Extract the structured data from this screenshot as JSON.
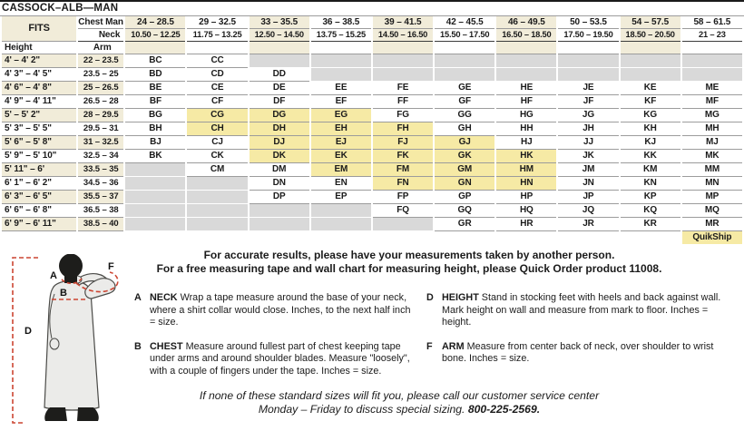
{
  "title": "CASSOCK–ALB—MAN",
  "colors": {
    "cream": "#f1ecd9",
    "quikship_yellow": "#f6eaa5",
    "unavailable_gray": "#d9d9d9",
    "measure_line_red": "#cc4532"
  },
  "table": {
    "fits_label": "FITS",
    "chest_row_label": "Chest Man",
    "neck_row_label": "Neck",
    "height_col_label": "Height",
    "arm_col_label": "Arm",
    "quikship_label": "QuikShip",
    "chest_ranges": [
      "24 – 28.5",
      "29 – 32.5",
      "33 – 35.5",
      "36 – 38.5",
      "39 – 41.5",
      "42 – 45.5",
      "46 – 49.5",
      "50 – 53.5",
      "54 – 57.5",
      "58 – 61.5"
    ],
    "neck_ranges": [
      "10.50 – 12.25",
      "11.75 – 13.25",
      "12.50 – 14.50",
      "13.75 – 15.25",
      "14.50 – 16.50",
      "15.50 – 17.50",
      "16.50 – 18.50",
      "17.50 – 19.50",
      "18.50 – 20.50",
      "21 – 23"
    ],
    "rows": [
      {
        "height": "4' – 4' 2\"",
        "arm": "22 – 23.5",
        "cells": [
          "BC",
          "CC",
          null,
          null,
          null,
          null,
          null,
          null,
          null,
          null
        ],
        "qs": []
      },
      {
        "height": "4' 3\" – 4' 5\"",
        "arm": "23.5 – 25",
        "cells": [
          "BD",
          "CD",
          "DD",
          null,
          null,
          null,
          null,
          null,
          null,
          null
        ],
        "qs": []
      },
      {
        "height": "4' 6\" – 4' 8\"",
        "arm": "25 – 26.5",
        "cells": [
          "BE",
          "CE",
          "DE",
          "EE",
          "FE",
          "GE",
          "HE",
          "JE",
          "KE",
          "ME"
        ],
        "qs": []
      },
      {
        "height": "4' 9\" – 4' 11\"",
        "arm": "26.5 – 28",
        "cells": [
          "BF",
          "CF",
          "DF",
          "EF",
          "FF",
          "GF",
          "HF",
          "JF",
          "KF",
          "MF"
        ],
        "qs": []
      },
      {
        "height": "5' – 5' 2\"",
        "arm": "28 – 29.5",
        "cells": [
          "BG",
          "CG",
          "DG",
          "EG",
          "FG",
          "GG",
          "HG",
          "JG",
          "KG",
          "MG"
        ],
        "qs": [
          1,
          2,
          3
        ]
      },
      {
        "height": "5' 3\" – 5' 5\"",
        "arm": "29.5 – 31",
        "cells": [
          "BH",
          "CH",
          "DH",
          "EH",
          "FH",
          "GH",
          "HH",
          "JH",
          "KH",
          "MH"
        ],
        "qs": [
          1,
          2,
          3,
          4
        ]
      },
      {
        "height": "5' 6\" – 5' 8\"",
        "arm": "31 – 32.5",
        "cells": [
          "BJ",
          "CJ",
          "DJ",
          "EJ",
          "FJ",
          "GJ",
          "HJ",
          "JJ",
          "KJ",
          "MJ"
        ],
        "qs": [
          2,
          3,
          4,
          5
        ]
      },
      {
        "height": "5' 9\" – 5' 10\"",
        "arm": "32.5 – 34",
        "cells": [
          "BK",
          "CK",
          "DK",
          "EK",
          "FK",
          "GK",
          "HK",
          "JK",
          "KK",
          "MK"
        ],
        "qs": [
          2,
          3,
          4,
          5,
          6
        ]
      },
      {
        "height": "5' 11\" – 6'",
        "arm": "33.5 – 35",
        "cells": [
          null,
          "CM",
          "DM",
          "EM",
          "FM",
          "GM",
          "HM",
          "JM",
          "KM",
          "MM"
        ],
        "qs": [
          3,
          4,
          5,
          6
        ]
      },
      {
        "height": "6' 1\" – 6' 2\"",
        "arm": "34.5 – 36",
        "cells": [
          null,
          null,
          "DN",
          "EN",
          "FN",
          "GN",
          "HN",
          "JN",
          "KN",
          "MN"
        ],
        "qs": [
          4,
          5,
          6
        ]
      },
      {
        "height": "6' 3\" – 6' 5\"",
        "arm": "35.5 – 37",
        "cells": [
          null,
          null,
          "DP",
          "EP",
          "FP",
          "GP",
          "HP",
          "JP",
          "KP",
          "MP"
        ],
        "qs": []
      },
      {
        "height": "6' 6\" – 6' 8\"",
        "arm": "36.5 – 38",
        "cells": [
          null,
          null,
          null,
          null,
          "FQ",
          "GQ",
          "HQ",
          "JQ",
          "KQ",
          "MQ"
        ],
        "qs": []
      },
      {
        "height": "6' 9\" – 6' 11\"",
        "arm": "38.5 – 40",
        "cells": [
          null,
          null,
          null,
          null,
          null,
          "GR",
          "HR",
          "JR",
          "KR",
          "MR"
        ],
        "qs": []
      }
    ]
  },
  "notes": {
    "line1": "For accurate results, please have your measurements taken by another person.",
    "line2": "For a free measuring tape and wall chart for measuring height, please Quick Order product 11008."
  },
  "instructions": {
    "left": [
      {
        "letter": "A",
        "term": "NECK",
        "text": "Wrap a tape measure around the base of your neck, where a shirt collar would close. Inches, to the next half inch = size."
      },
      {
        "letter": "B",
        "term": "CHEST",
        "text": "Measure around fullest part of chest keeping tape under arms and around shoulder blades. Measure \"loosely\", with a couple of fingers under the tape. Inches = size."
      }
    ],
    "right": [
      {
        "letter": "D",
        "term": "HEIGHT",
        "text": "Stand in stocking feet with heels and back against wall. Mark height on wall and measure from mark to floor. Inches = height."
      },
      {
        "letter": "F",
        "term": "ARM",
        "text": "Measure from center back of neck, over shoulder to wrist bone. Inches = size."
      }
    ]
  },
  "special_sizing": {
    "line1": "If none of these standard sizes will fit you, please call our customer service center",
    "line2": "Monday – Friday to discuss special sizing.",
    "phone": "800-225-2569."
  },
  "figure": {
    "labels": {
      "a": "A",
      "b": "B",
      "d": "D",
      "f": "F"
    }
  }
}
